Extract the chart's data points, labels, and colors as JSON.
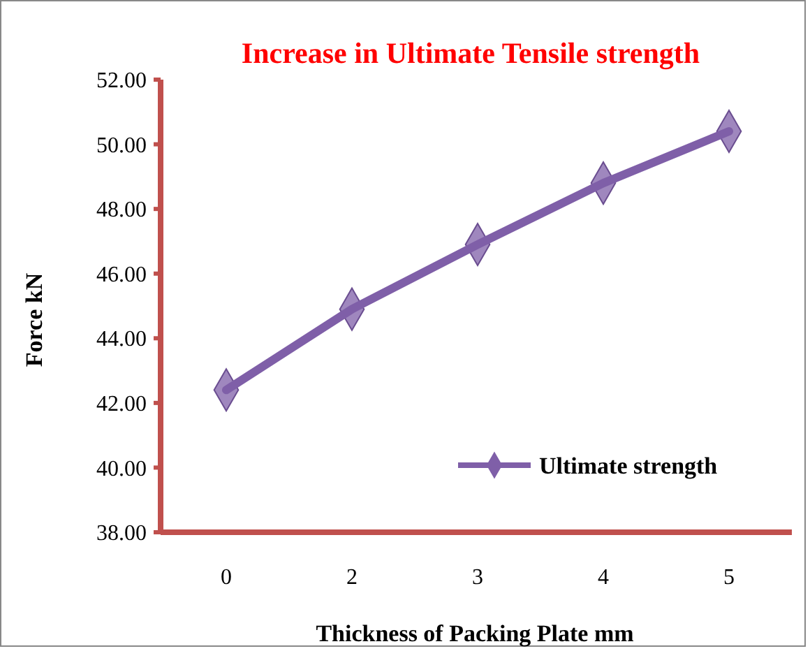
{
  "chart_data": {
    "type": "line",
    "title": "Increase in Ultimate Tensile strength",
    "xlabel": "Thickness of Packing Plate  mm",
    "ylabel": "Force  kN",
    "categories": [
      "0",
      "2",
      "3",
      "4",
      "5"
    ],
    "series": [
      {
        "name": "Ultimate strength",
        "color": "#7f5fa8",
        "values": [
          42.4,
          44.9,
          46.9,
          48.8,
          50.4
        ]
      }
    ],
    "ylim": [
      38,
      52
    ],
    "yticks": [
      {
        "value": 38,
        "label": "38.00"
      },
      {
        "value": 40,
        "label": "40.00"
      },
      {
        "value": 42,
        "label": "42.00"
      },
      {
        "value": 44,
        "label": "44.00"
      },
      {
        "value": 46,
        "label": "46.00"
      },
      {
        "value": 48,
        "label": "48.00"
      },
      {
        "value": 50,
        "label": "50.00"
      },
      {
        "value": 52,
        "label": "52.00"
      }
    ],
    "marker": "diamond",
    "legend": "bottom right",
    "grid": false
  }
}
